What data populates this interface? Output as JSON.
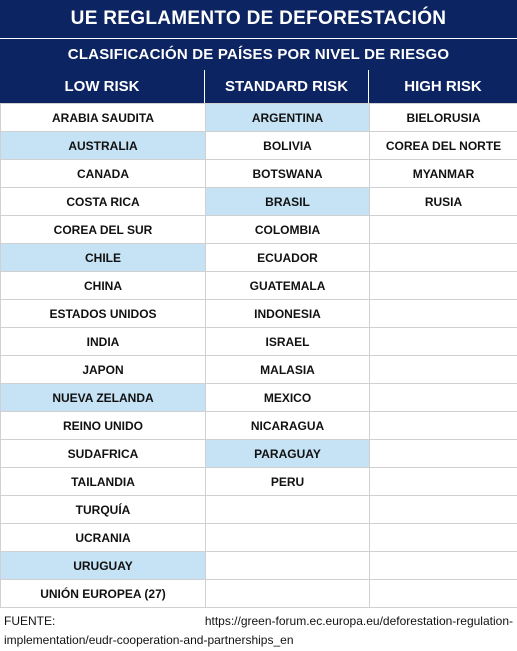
{
  "title": "UE REGLAMENTO DE DEFORESTACIÓN",
  "subtitle": "CLASIFICACIÓN DE PAÍSES POR NIVEL DE RIESGO",
  "columns": [
    "LOW RISK",
    "STANDARD RISK",
    "HIGH RISK"
  ],
  "highlight_color": "#c6e3f5",
  "header_color": "#0c2461",
  "rows": [
    [
      {
        "t": "ARABIA SAUDITA",
        "h": false
      },
      {
        "t": "ARGENTINA",
        "h": true
      },
      {
        "t": "BIELORUSIA",
        "h": false
      }
    ],
    [
      {
        "t": "AUSTRALIA",
        "h": true
      },
      {
        "t": "BOLIVIA",
        "h": false
      },
      {
        "t": "COREA DEL NORTE",
        "h": false
      }
    ],
    [
      {
        "t": "CANADA",
        "h": false
      },
      {
        "t": "BOTSWANA",
        "h": false
      },
      {
        "t": "MYANMAR",
        "h": false
      }
    ],
    [
      {
        "t": "COSTA RICA",
        "h": false
      },
      {
        "t": "BRASIL",
        "h": true
      },
      {
        "t": "RUSIA",
        "h": false
      }
    ],
    [
      {
        "t": "COREA DEL SUR",
        "h": false
      },
      {
        "t": "COLOMBIA",
        "h": false
      },
      {
        "t": "",
        "h": false
      }
    ],
    [
      {
        "t": "CHILE",
        "h": true
      },
      {
        "t": "ECUADOR",
        "h": false
      },
      {
        "t": "",
        "h": false
      }
    ],
    [
      {
        "t": "CHINA",
        "h": false
      },
      {
        "t": "GUATEMALA",
        "h": false
      },
      {
        "t": "",
        "h": false
      }
    ],
    [
      {
        "t": "ESTADOS UNIDOS",
        "h": false
      },
      {
        "t": "INDONESIA",
        "h": false
      },
      {
        "t": "",
        "h": false
      }
    ],
    [
      {
        "t": "INDIA",
        "h": false
      },
      {
        "t": "ISRAEL",
        "h": false
      },
      {
        "t": "",
        "h": false
      }
    ],
    [
      {
        "t": "JAPON",
        "h": false
      },
      {
        "t": "MALASIA",
        "h": false
      },
      {
        "t": "",
        "h": false
      }
    ],
    [
      {
        "t": "NUEVA ZELANDA",
        "h": true
      },
      {
        "t": "MEXICO",
        "h": false
      },
      {
        "t": "",
        "h": false
      }
    ],
    [
      {
        "t": "REINO UNIDO",
        "h": false
      },
      {
        "t": "NICARAGUA",
        "h": false
      },
      {
        "t": "",
        "h": false
      }
    ],
    [
      {
        "t": "SUDAFRICA",
        "h": false
      },
      {
        "t": "PARAGUAY",
        "h": true
      },
      {
        "t": "",
        "h": false
      }
    ],
    [
      {
        "t": "TAILANDIA",
        "h": false
      },
      {
        "t": "PERU",
        "h": false
      },
      {
        "t": "",
        "h": false
      }
    ],
    [
      {
        "t": "TURQUÍA",
        "h": false
      },
      {
        "t": "",
        "h": false
      },
      {
        "t": "",
        "h": false
      }
    ],
    [
      {
        "t": "UCRANIA",
        "h": false
      },
      {
        "t": "",
        "h": false
      },
      {
        "t": "",
        "h": false
      }
    ],
    [
      {
        "t": "URUGUAY",
        "h": true
      },
      {
        "t": "",
        "h": false
      },
      {
        "t": "",
        "h": false
      }
    ],
    [
      {
        "t": "UNIÓN EUROPEA (27)",
        "h": false
      },
      {
        "t": "",
        "h": false
      },
      {
        "t": "",
        "h": false
      }
    ]
  ],
  "footer": {
    "label": "FUENTE:",
    "url_line1": "https://green-forum.ec.europa.eu/deforestation-regulation-",
    "url_line2": "implementation/eudr-cooperation-and-partnerships_en"
  }
}
